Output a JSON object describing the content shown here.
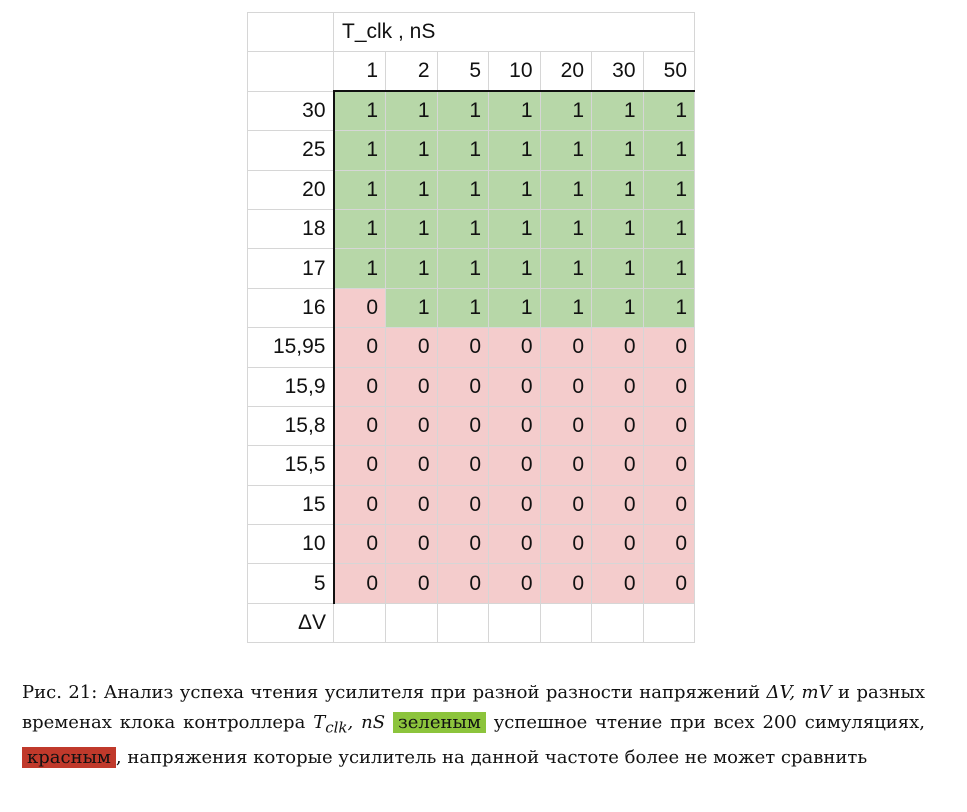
{
  "table": {
    "header_title": "T_clk , nS",
    "columns": [
      "1",
      "2",
      "5",
      "10",
      "20",
      "30",
      "50"
    ],
    "rows": [
      {
        "label": "30",
        "values": [
          "1",
          "1",
          "1",
          "1",
          "1",
          "1",
          "1"
        ]
      },
      {
        "label": "25",
        "values": [
          "1",
          "1",
          "1",
          "1",
          "1",
          "1",
          "1"
        ]
      },
      {
        "label": "20",
        "values": [
          "1",
          "1",
          "1",
          "1",
          "1",
          "1",
          "1"
        ]
      },
      {
        "label": "18",
        "values": [
          "1",
          "1",
          "1",
          "1",
          "1",
          "1",
          "1"
        ]
      },
      {
        "label": "17",
        "values": [
          "1",
          "1",
          "1",
          "1",
          "1",
          "1",
          "1"
        ]
      },
      {
        "label": "16",
        "values": [
          "0",
          "1",
          "1",
          "1",
          "1",
          "1",
          "1"
        ]
      },
      {
        "label": "15,95",
        "values": [
          "0",
          "0",
          "0",
          "0",
          "0",
          "0",
          "0"
        ]
      },
      {
        "label": "15,9",
        "values": [
          "0",
          "0",
          "0",
          "0",
          "0",
          "0",
          "0"
        ]
      },
      {
        "label": "15,8",
        "values": [
          "0",
          "0",
          "0",
          "0",
          "0",
          "0",
          "0"
        ]
      },
      {
        "label": "15,5",
        "values": [
          "0",
          "0",
          "0",
          "0",
          "0",
          "0",
          "0"
        ]
      },
      {
        "label": "15",
        "values": [
          "0",
          "0",
          "0",
          "0",
          "0",
          "0",
          "0"
        ]
      },
      {
        "label": "10",
        "values": [
          "0",
          "0",
          "0",
          "0",
          "0",
          "0",
          "0"
        ]
      },
      {
        "label": "5",
        "values": [
          "0",
          "0",
          "0",
          "0",
          "0",
          "0",
          "0"
        ]
      }
    ],
    "footer_label": "ΔV",
    "colors": {
      "success": "#b7d7a8",
      "failure": "#f4cccc"
    }
  },
  "caption": {
    "part1": "Рис. 21: Анализ успеха чтения усилителя при разной разности напряжений ",
    "math1": "ΔV, mV",
    "part2": " и разных временах клока контроллера ",
    "math2": "T",
    "math2_sub": "clk",
    "math2_rest": ", nS",
    "green_word": "зеленым",
    "part3": " успешное чтение при всех 200 симуляциях, ",
    "red_word": "красным",
    "part4": ", напряжения которые усилитель на данной частоте более не может сравнить",
    "colors": {
      "green_highlight": "#8cc43c",
      "red_highlight": "#c0392b"
    }
  }
}
